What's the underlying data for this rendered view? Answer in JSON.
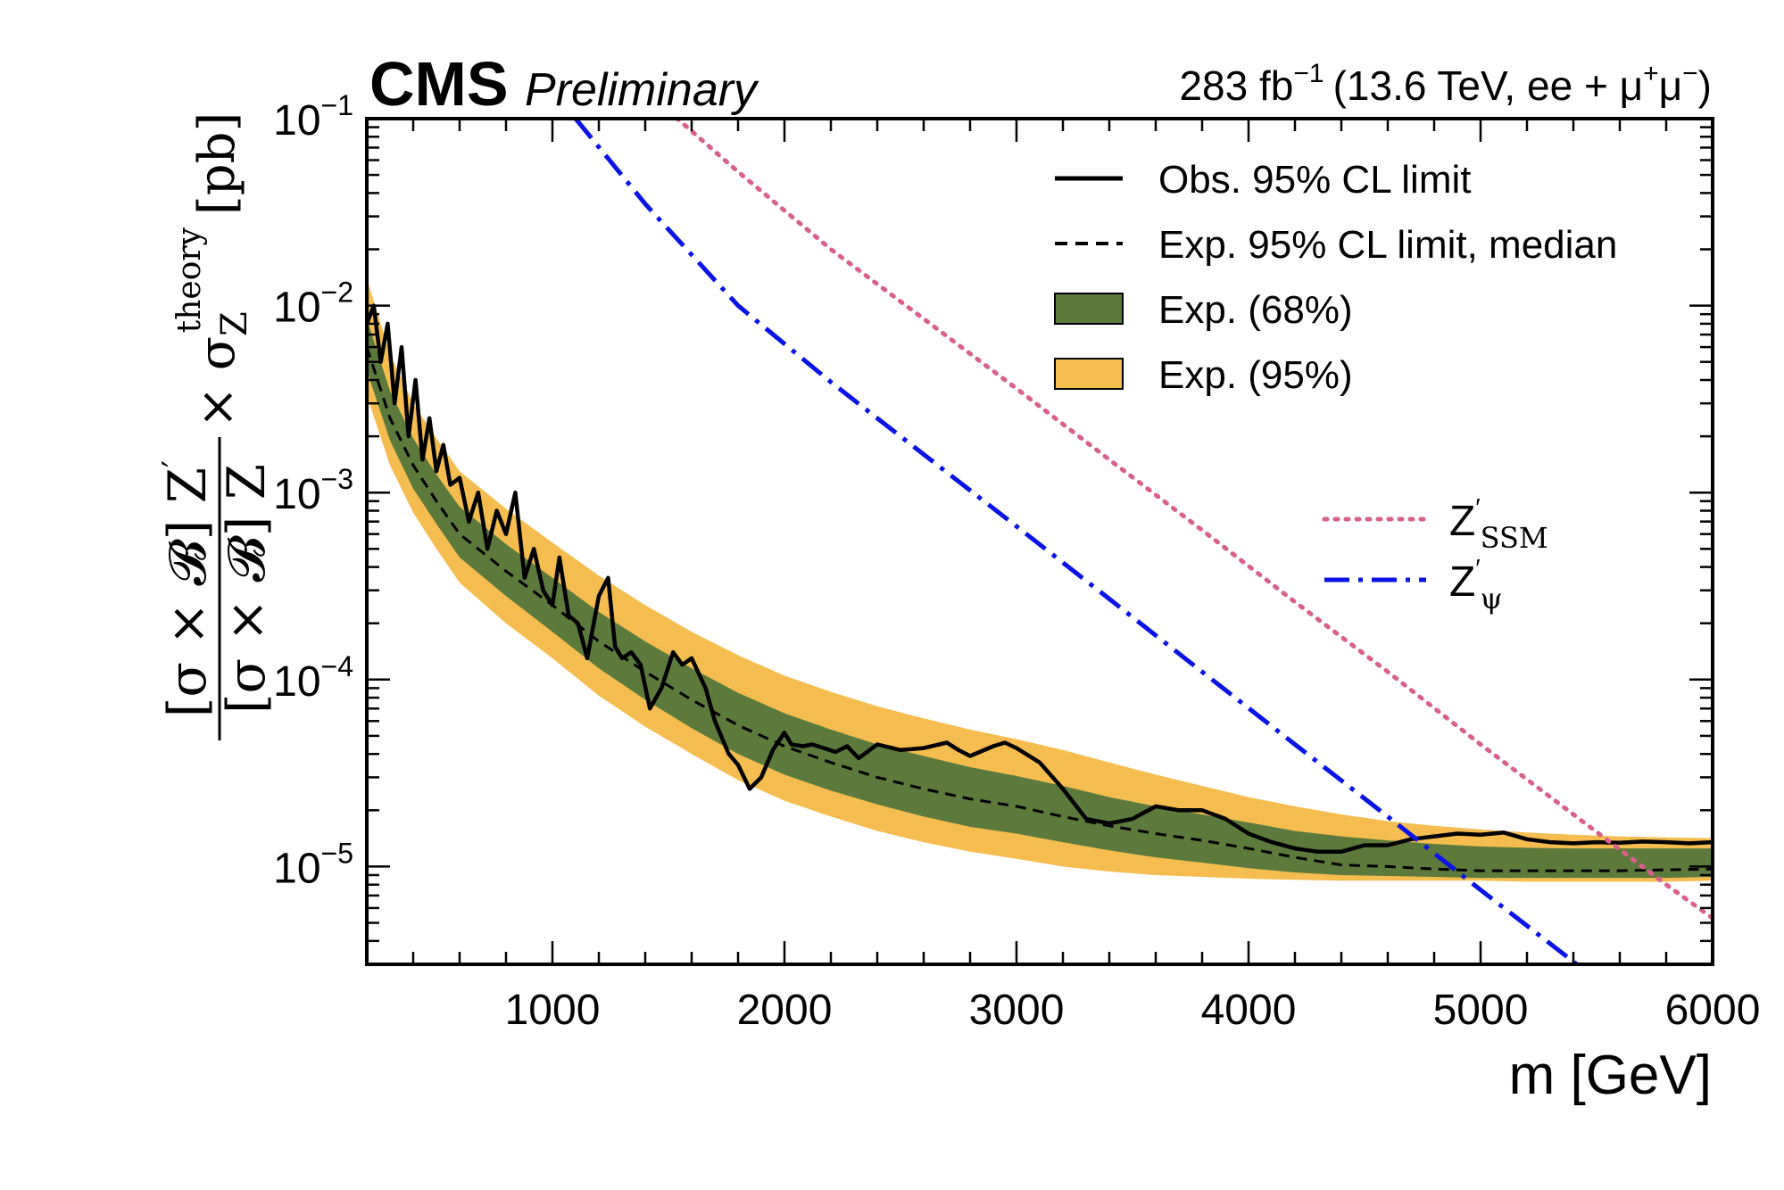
{
  "header": {
    "experiment": "CMS",
    "status": "Preliminary",
    "luminosity": "283 fb",
    "lumi_exponent": "−1",
    "energy_text": "(13.6 TeV, ee + μ",
    "mu_plus": "+",
    "mu": "μ",
    "mu_minus": "−",
    "close_paren": ")"
  },
  "chart_data": {
    "type": "line",
    "xlabel": "m [GeV]",
    "ylabel": "[σ × B] Z′ / [σ × B] Z × σZ theory [pb]",
    "ylabel_parts": {
      "num": "[σ × 𝓑] Z",
      "num_prime": "′",
      "den": "[σ × 𝓑] Z",
      "times": "× σ",
      "sigma_sub": "Z",
      "sigma_sup": "theory",
      "unit": "[pb]"
    },
    "xlim": [
      200,
      6000
    ],
    "ylim": [
      3e-06,
      0.1
    ],
    "yscale": "log",
    "x_ticks": [
      1000,
      2000,
      3000,
      4000,
      5000,
      6000
    ],
    "x_tick_labels": [
      "1000",
      "2000",
      "3000",
      "4000",
      "5000",
      "6000"
    ],
    "y_tick_labels": [
      {
        "base": "10",
        "exp": "−1",
        "value": 0.1
      },
      {
        "base": "10",
        "exp": "−2",
        "value": 0.01
      },
      {
        "base": "10",
        "exp": "−3",
        "value": 0.001
      },
      {
        "base": "10",
        "exp": "−4",
        "value": 0.0001
      },
      {
        "base": "10",
        "exp": "−5",
        "value": 1e-05
      }
    ],
    "legend": [
      {
        "label": "Obs. 95% CL limit",
        "style": "solid"
      },
      {
        "label": "Exp. 95% CL limit, median",
        "style": "dashed"
      },
      {
        "label": "Exp. (68%)",
        "style": "band68"
      },
      {
        "label": "Exp. (95%)",
        "style": "band95"
      }
    ],
    "legend_models": [
      {
        "label": "Z",
        "sub": "SSM",
        "style": "dotted"
      },
      {
        "label": "Z",
        "sub": "ψ",
        "style": "dashdot"
      }
    ],
    "colors": {
      "observed": "#000000",
      "expected": "#000000",
      "band68": "#5b7a3c",
      "band95": "#f5bd4f",
      "ssm": "#d9608a",
      "psi": "#0a14e6"
    },
    "expected": {
      "x": [
        200,
        300,
        400,
        500,
        600,
        800,
        1000,
        1200,
        1400,
        1600,
        1800,
        2000,
        2200,
        2400,
        2600,
        2800,
        3000,
        3200,
        3400,
        3600,
        3800,
        4000,
        4200,
        4400,
        4600,
        4800,
        5000,
        5200,
        5400,
        5600,
        5800,
        6000
      ],
      "y": [
        0.006,
        0.0025,
        0.0014,
        0.0009,
        0.0006,
        0.00038,
        0.00025,
        0.00016,
        0.00011,
        7.8e-05,
        5.7e-05,
        4.4e-05,
        3.6e-05,
        3e-05,
        2.6e-05,
        2.3e-05,
        2.1e-05,
        1.85e-05,
        1.65e-05,
        1.5e-05,
        1.38e-05,
        1.25e-05,
        1.12e-05,
        1.02e-05,
        1e-05,
        9.7e-06,
        9.5e-06,
        9.5e-06,
        9.5e-06,
        9.5e-06,
        9.6e-06,
        9.7e-06
      ]
    },
    "band68": {
      "x": [
        200,
        300,
        400,
        500,
        600,
        800,
        1000,
        1200,
        1400,
        1600,
        1800,
        2000,
        2200,
        2400,
        2600,
        2800,
        3000,
        3200,
        3400,
        3600,
        3800,
        4000,
        4200,
        4400,
        4600,
        4800,
        5000,
        5200,
        5400,
        5600,
        5800,
        6000
      ],
      "lo": [
        0.0045,
        0.0019,
        0.00105,
        0.00068,
        0.00045,
        0.00028,
        0.00018,
        0.000115,
        7.8e-05,
        5.5e-05,
        4e-05,
        3.1e-05,
        2.55e-05,
        2.15e-05,
        1.85e-05,
        1.63e-05,
        1.5e-05,
        1.35e-05,
        1.22e-05,
        1.12e-05,
        1.05e-05,
        9.8e-06,
        9.3e-06,
        9e-06,
        8.9e-06,
        8.8e-06,
        8.7e-06,
        8.7e-06,
        8.7e-06,
        8.7e-06,
        8.7e-06,
        8.8e-06
      ],
      "hi": [
        0.0085,
        0.0035,
        0.00195,
        0.00125,
        0.00084,
        0.00053,
        0.00035,
        0.00023,
        0.00016,
        0.000115,
        8.5e-05,
        6.6e-05,
        5.4e-05,
        4.5e-05,
        3.9e-05,
        3.4e-05,
        3.05e-05,
        2.7e-05,
        2.35e-05,
        2.1e-05,
        1.9e-05,
        1.72e-05,
        1.55e-05,
        1.45e-05,
        1.38e-05,
        1.32e-05,
        1.28e-05,
        1.26e-05,
        1.25e-05,
        1.25e-05,
        1.25e-05,
        1.25e-05
      ]
    },
    "band95": {
      "x": [
        200,
        300,
        400,
        500,
        600,
        800,
        1000,
        1200,
        1400,
        1600,
        1800,
        2000,
        2200,
        2400,
        2600,
        2800,
        3000,
        3200,
        3400,
        3600,
        3800,
        4000,
        4200,
        4400,
        4600,
        4800,
        5000,
        5200,
        5400,
        5600,
        5800,
        6000
      ],
      "lo": [
        0.0033,
        0.0014,
        0.00078,
        0.0005,
        0.00033,
        0.0002,
        0.00013,
        8.2e-05,
        5.6e-05,
        4e-05,
        2.9e-05,
        2.25e-05,
        1.85e-05,
        1.55e-05,
        1.35e-05,
        1.2e-05,
        1.1e-05,
        1e-05,
        9.4e-06,
        9e-06,
        8.8e-06,
        8.6e-06,
        8.5e-06,
        8.4e-06,
        8.4e-06,
        8.4e-06,
        8.4e-06,
        8.3e-06,
        8.3e-06,
        8.3e-06,
        8.3e-06,
        8.4e-06
      ],
      "hi": [
        0.014,
        0.0055,
        0.003,
        0.00195,
        0.0013,
        0.00082,
        0.00054,
        0.00036,
        0.00025,
        0.00018,
        0.000135,
        0.000105,
        8.6e-05,
        7.2e-05,
        6.2e-05,
        5.4e-05,
        4.8e-05,
        4.2e-05,
        3.6e-05,
        3.1e-05,
        2.7e-05,
        2.35e-05,
        2.1e-05,
        1.9e-05,
        1.75e-05,
        1.65e-05,
        1.58e-05,
        1.52e-05,
        1.48e-05,
        1.45e-05,
        1.43e-05,
        1.42e-05
      ]
    },
    "observed": {
      "x": [
        200,
        230,
        260,
        290,
        320,
        350,
        380,
        410,
        440,
        470,
        500,
        530,
        560,
        600,
        640,
        680,
        720,
        760,
        800,
        840,
        880,
        920,
        960,
        1000,
        1030,
        1070,
        1110,
        1150,
        1200,
        1240,
        1270,
        1300,
        1340,
        1380,
        1420,
        1470,
        1520,
        1560,
        1600,
        1660,
        1700,
        1760,
        1800,
        1850,
        1900,
        1950,
        2000,
        2030,
        2080,
        2120,
        2170,
        2220,
        2270,
        2320,
        2400,
        2500,
        2600,
        2700,
        2750,
        2800,
        2900,
        2950,
        3000,
        3100,
        3200,
        3300,
        3400,
        3500,
        3600,
        3700,
        3800,
        3900,
        4000,
        4100,
        4200,
        4300,
        4400,
        4500,
        4600,
        4700,
        4800,
        4900,
        5000,
        5100,
        5200,
        5300,
        5400,
        5500,
        5600,
        5700,
        5800,
        5900,
        6000
      ],
      "y": [
        0.008,
        0.01,
        0.005,
        0.008,
        0.003,
        0.006,
        0.002,
        0.004,
        0.0015,
        0.0025,
        0.0013,
        0.0018,
        0.0011,
        0.0012,
        0.0007,
        0.001,
        0.0005,
        0.0008,
        0.0006,
        0.001,
        0.00035,
        0.0005,
        0.0003,
        0.00025,
        0.00045,
        0.00022,
        0.0002,
        0.00013,
        0.00028,
        0.00035,
        0.00015,
        0.00013,
        0.00014,
        0.00012,
        7e-05,
        9e-05,
        0.00014,
        0.00012,
        0.00013,
        9e-05,
        6e-05,
        4e-05,
        3.5e-05,
        2.6e-05,
        3e-05,
        4.2e-05,
        5.2e-05,
        4.5e-05,
        4.4e-05,
        4.5e-05,
        4.3e-05,
        4.1e-05,
        4.4e-05,
        3.8e-05,
        4.5e-05,
        4.2e-05,
        4.3e-05,
        4.6e-05,
        4.2e-05,
        3.9e-05,
        4.4e-05,
        4.6e-05,
        4.3e-05,
        3.6e-05,
        2.6e-05,
        1.8e-05,
        1.7e-05,
        1.8e-05,
        2.1e-05,
        2e-05,
        2e-05,
        1.8e-05,
        1.5e-05,
        1.35e-05,
        1.25e-05,
        1.2e-05,
        1.2e-05,
        1.3e-05,
        1.3e-05,
        1.4e-05,
        1.45e-05,
        1.5e-05,
        1.48e-05,
        1.52e-05,
        1.4e-05,
        1.35e-05,
        1.33e-05,
        1.35e-05,
        1.34e-05,
        1.36e-05,
        1.35e-05,
        1.33e-05,
        1.35e-05
      ]
    },
    "ssm": {
      "x": [
        1500,
        1800,
        2200,
        2600,
        3000,
        3400,
        3800,
        4200,
        4600,
        5000,
        5400,
        5800,
        6000
      ],
      "y": [
        0.11,
        0.052,
        0.02,
        0.0085,
        0.0036,
        0.0015,
        0.00063,
        0.00026,
        0.00011,
        4.5e-05,
        1.9e-05,
        8e-06,
        5.3e-06
      ]
    },
    "psi": {
      "x": [
        1100,
        1400,
        1800,
        2200,
        2600,
        3000,
        3400,
        3800,
        4200,
        4600,
        5000,
        5400,
        5800
      ],
      "y": [
        0.1,
        0.035,
        0.01,
        0.0039,
        0.0016,
        0.00066,
        0.00027,
        0.00011,
        4.5e-05,
        1.85e-05,
        7.5e-06,
        3.1e-06,
        1.3e-06
      ]
    }
  }
}
